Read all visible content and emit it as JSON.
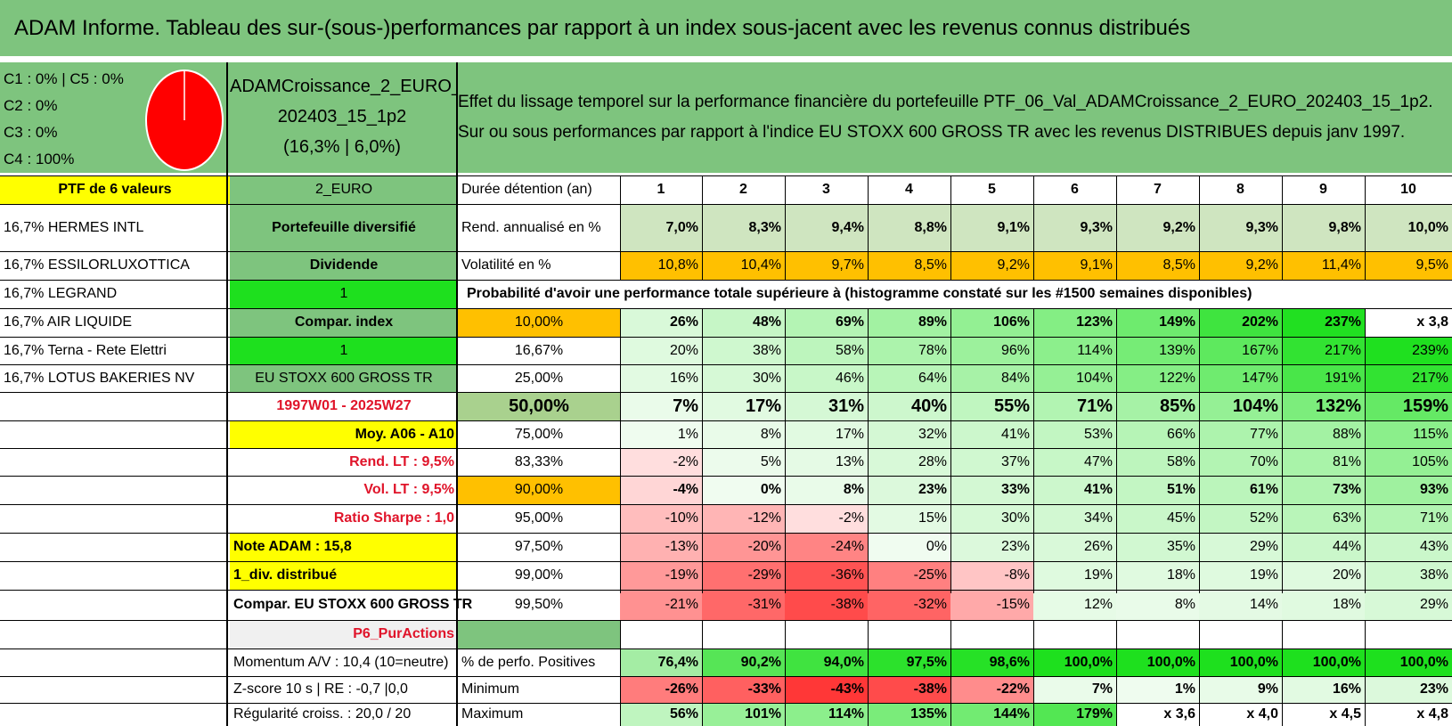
{
  "title": "ADAM Informe. Tableau des sur-(sous-)performances par rapport à un index sous-jacent avec les revenus connus distribués",
  "legend": [
    "C1 : 0% | C5 : 0%",
    "C2 : 0%",
    "C3 : 0%",
    "C4 : 100%"
  ],
  "pie": {
    "c4_share": 1.0,
    "fill": "#ff0000"
  },
  "portfolio_header": {
    "line1": "ADAMCroissance_2_EURO_",
    "line2": "202403_15_1p2",
    "line3": "(16,3% | 6,0%)"
  },
  "description": {
    "line1": "Effet du lissage temporel sur la performance financière du portefeuille PTF_06_Val_ADAMCroissance_2_EURO_202403_15_1p2.",
    "line2": "Sur ou sous performances par rapport à l'indice EU STOXX 600 GROSS TR avec les revenus DISTRIBUES depuis janv 1997."
  },
  "colA": [
    "PTF de 6 valeurs",
    "16,7% HERMES INTL",
    "16,7% ESSILORLUXOTTICA",
    "16,7% LEGRAND",
    "16,7% AIR LIQUIDE",
    "16,7% Terna - Rete Elettri",
    "16,7% LOTUS BAKERIES NV"
  ],
  "colB": [
    "2_EURO",
    "Portefeuille diversifié",
    "Dividende",
    "1",
    "Compar. index",
    "1",
    "EU STOXX 600 GROSS TR",
    "1997W01 - 2025W27",
    "Moy. A06 - A10",
    "Rend. LT : 9,5%",
    "Vol. LT : 9,5%",
    "Ratio Sharpe : 1,0",
    "Note ADAM : 15,8",
    "1_div. distribué",
    "Compar. EU STOXX 600 GROSS TR",
    "P6_PurActions",
    "Momentum A/V : 10,4 (10=neutre)",
    "Z-score 10 s | RE : -0,7 |0,0",
    "Régularité croiss. : 20,0 / 20"
  ],
  "duration_label": "Durée détention (an)",
  "years": [
    "1",
    "2",
    "3",
    "4",
    "5",
    "6",
    "7",
    "8",
    "9",
    "10"
  ],
  "rend_label": "Rend. annualisé en %",
  "rend_values": [
    "7,0%",
    "8,3%",
    "9,4%",
    "8,8%",
    "9,1%",
    "9,3%",
    "9,2%",
    "9,3%",
    "9,8%",
    "10,0%"
  ],
  "vol_label": "Volatilité en %",
  "vol_values": [
    "10,8%",
    "10,4%",
    "9,7%",
    "8,5%",
    "9,2%",
    "9,1%",
    "8,5%",
    "9,2%",
    "11,4%",
    "9,5%"
  ],
  "prob_label": "Probabilité d'avoir une performance totale supérieure à (histogramme constaté sur les #1500 semaines disponibles)",
  "prob_rows": [
    {
      "p": "10,00%",
      "v": [
        "26%",
        "48%",
        "69%",
        "89%",
        "106%",
        "123%",
        "149%",
        "202%",
        "237%",
        "x 3,8"
      ]
    },
    {
      "p": "16,67%",
      "v": [
        "20%",
        "38%",
        "58%",
        "78%",
        "96%",
        "114%",
        "139%",
        "167%",
        "217%",
        "239%"
      ]
    },
    {
      "p": "25,00%",
      "v": [
        "16%",
        "30%",
        "46%",
        "64%",
        "84%",
        "104%",
        "122%",
        "147%",
        "191%",
        "217%"
      ]
    },
    {
      "p": "50,00%",
      "v": [
        "7%",
        "17%",
        "31%",
        "40%",
        "55%",
        "71%",
        "85%",
        "104%",
        "132%",
        "159%"
      ]
    },
    {
      "p": "75,00%",
      "v": [
        "1%",
        "8%",
        "17%",
        "32%",
        "41%",
        "53%",
        "66%",
        "77%",
        "88%",
        "115%"
      ]
    },
    {
      "p": "83,33%",
      "v": [
        "-2%",
        "5%",
        "13%",
        "28%",
        "37%",
        "47%",
        "58%",
        "70%",
        "81%",
        "105%"
      ]
    },
    {
      "p": "90,00%",
      "v": [
        "-4%",
        "0%",
        "8%",
        "23%",
        "33%",
        "41%",
        "51%",
        "61%",
        "73%",
        "93%"
      ]
    },
    {
      "p": "95,00%",
      "v": [
        "-10%",
        "-12%",
        "-2%",
        "15%",
        "30%",
        "34%",
        "45%",
        "52%",
        "63%",
        "71%"
      ]
    },
    {
      "p": "97,50%",
      "v": [
        "-13%",
        "-20%",
        "-24%",
        "0%",
        "23%",
        "26%",
        "35%",
        "29%",
        "44%",
        "43%"
      ]
    },
    {
      "p": "99,00%",
      "v": [
        "-19%",
        "-29%",
        "-36%",
        "-25%",
        "-8%",
        "19%",
        "18%",
        "19%",
        "20%",
        "38%"
      ]
    },
    {
      "p": "99,50%",
      "v": [
        "-21%",
        "-31%",
        "-38%",
        "-32%",
        "-15%",
        "12%",
        "8%",
        "14%",
        "18%",
        "29%"
      ]
    }
  ],
  "stats_rows": [
    {
      "label": "% de perfo. Positives",
      "v": [
        "76,4%",
        "90,2%",
        "94,0%",
        "97,5%",
        "98,6%",
        "100,0%",
        "100,0%",
        "100,0%",
        "100,0%",
        "100,0%"
      ]
    },
    {
      "label": "Minimum",
      "v": [
        "-26%",
        "-33%",
        "-43%",
        "-38%",
        "-22%",
        "7%",
        "1%",
        "9%",
        "16%",
        "23%"
      ]
    },
    {
      "label": "Maximum",
      "v": [
        "56%",
        "101%",
        "114%",
        "135%",
        "144%",
        "179%",
        "x 3,6",
        "x 4,0",
        "x 4,5",
        "x 4,8"
      ]
    }
  ],
  "colors": {
    "header_green": "#7ec47e",
    "bright_green": "#1ee01e",
    "orange": "#ffc000",
    "yellow": "#ffff00",
    "red_text": "#e0142a"
  }
}
